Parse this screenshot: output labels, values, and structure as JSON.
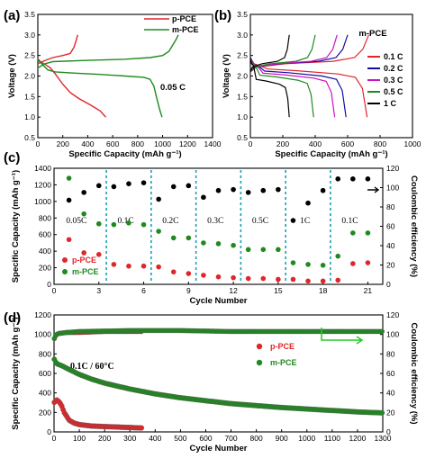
{
  "colors": {
    "red": "#e0262b",
    "green": "#1f8a1f",
    "black": "#000000",
    "blue": "#1010a0",
    "magenta": "#d010c0",
    "cyan": "#1aa0b0",
    "arrow": "#22cc22"
  },
  "chart_data": [
    {
      "panel": "(a)",
      "type": "line",
      "xlabel": "Specific Capacity (mAh g⁻¹)",
      "ylabel": "Voltage (V)",
      "xlim": [
        0,
        1400
      ],
      "ylim": [
        0.5,
        3.5
      ],
      "xticks": [
        0,
        200,
        400,
        600,
        800,
        1000,
        1200,
        1400
      ],
      "yticks": [
        0.5,
        1.0,
        1.5,
        2.0,
        2.5,
        3.0,
        3.5
      ],
      "legend": [
        "p-PCE",
        "m-PCE"
      ],
      "legend_placement": "top-right",
      "annotation": "0.05 C",
      "series": [
        {
          "name": "p-PCE",
          "color": "red",
          "segments": [
            [
              [
                0,
                2.42
              ],
              [
                20,
                2.35
              ],
              [
                60,
                2.28
              ],
              [
                100,
                2.2
              ],
              [
                140,
                2.05
              ],
              [
                200,
                1.8
              ],
              [
                260,
                1.6
              ],
              [
                330,
                1.45
              ],
              [
                420,
                1.3
              ],
              [
                500,
                1.15
              ],
              [
                545,
                1.0
              ]
            ],
            [
              [
                0,
                2.3
              ],
              [
                60,
                2.38
              ],
              [
                120,
                2.45
              ],
              [
                200,
                2.5
              ],
              [
                260,
                2.55
              ],
              [
                290,
                2.7
              ],
              [
                305,
                2.85
              ],
              [
                320,
                3.0
              ]
            ]
          ]
        },
        {
          "name": "m-PCE",
          "color": "green",
          "segments": [
            [
              [
                0,
                2.4
              ],
              [
                30,
                2.3
              ],
              [
                80,
                2.15
              ],
              [
                140,
                2.1
              ],
              [
                300,
                2.07
              ],
              [
                500,
                2.04
              ],
              [
                700,
                2.0
              ],
              [
                850,
                1.97
              ],
              [
                900,
                1.92
              ],
              [
                930,
                1.75
              ],
              [
                950,
                1.5
              ],
              [
                975,
                1.2
              ],
              [
                995,
                1.0
              ]
            ],
            [
              [
                0,
                2.2
              ],
              [
                60,
                2.3
              ],
              [
                120,
                2.35
              ],
              [
                400,
                2.38
              ],
              [
                700,
                2.41
              ],
              [
                900,
                2.45
              ],
              [
                1000,
                2.5
              ],
              [
                1050,
                2.6
              ],
              [
                1080,
                2.75
              ],
              [
                1110,
                2.9
              ],
              [
                1125,
                3.0
              ]
            ]
          ]
        }
      ]
    },
    {
      "panel": "(b)",
      "type": "line",
      "title": "m-PCE",
      "xlabel": "Specific Capacity (mAh g⁻¹)",
      "ylabel": "Voltage (V)",
      "xlim": [
        0,
        1000
      ],
      "ylim": [
        0.5,
        3.5
      ],
      "xticks": [
        0,
        200,
        400,
        600,
        800,
        1000
      ],
      "yticks": [
        0.5,
        1.0,
        1.5,
        2.0,
        2.5,
        3.0,
        3.5
      ],
      "legend": [
        "0.1 C",
        "0.2 C",
        "0.3 C",
        "0.5 C",
        "1 C"
      ],
      "legend_placement": "right",
      "series": [
        {
          "name": "0.1 C",
          "color": "red",
          "discharge_end": 720,
          "charge_end": 730,
          "plateau": 2.05
        },
        {
          "name": "0.2 C",
          "color": "blue",
          "discharge_end": 590,
          "charge_end": 600,
          "plateau": 2.0
        },
        {
          "name": "0.3 C",
          "color": "magenta",
          "discharge_end": 520,
          "charge_end": 535,
          "plateau": 1.95
        },
        {
          "name": "0.5 C",
          "color": "green",
          "discharge_end": 390,
          "charge_end": 400,
          "plateau": 1.9
        },
        {
          "name": "1 C",
          "color": "black",
          "discharge_end": 240,
          "charge_end": 240,
          "plateau": 1.8
        }
      ]
    },
    {
      "panel": "(c)",
      "type": "scatter",
      "xlabel": "Cycle Number",
      "ylabel": "Specific Capacity (mAh g⁻¹)",
      "ylabel_right": "Coulombic efficiency (%)",
      "xlim": [
        0,
        22
      ],
      "ylim": [
        0,
        1400
      ],
      "ylim_right": [
        0,
        120
      ],
      "xticks": [
        0,
        3,
        6,
        9,
        12,
        15,
        18,
        21
      ],
      "yticks": [
        0,
        200,
        400,
        600,
        800,
        1000,
        1200,
        1400
      ],
      "yticks_right": [
        0,
        20,
        40,
        60,
        80,
        100,
        120
      ],
      "rate_labels": [
        {
          "text": "0.05C",
          "x": 1.5
        },
        {
          "text": "0.1C",
          "x": 4.8
        },
        {
          "text": "0.2C",
          "x": 7.8
        },
        {
          "text": "0.3C",
          "x": 10.8
        },
        {
          "text": "0.5C",
          "x": 13.8
        },
        {
          "text": "1C",
          "x": 16.8
        },
        {
          "text": "0.1C",
          "x": 19.8
        }
      ],
      "dividers": [
        3.5,
        6.5,
        9.5,
        12.5,
        15.5,
        18.5
      ],
      "legend": [
        "p-PCE",
        "m-PCE"
      ],
      "legend_placement": "bottom-left",
      "series": [
        {
          "name": "p-PCE",
          "color": "red",
          "x": [
            1,
            2,
            3,
            4,
            5,
            6,
            7,
            8,
            9,
            10,
            11,
            12,
            13,
            14,
            15,
            16,
            17,
            18,
            19,
            20,
            21
          ],
          "y": [
            540,
            380,
            360,
            240,
            220,
            220,
            210,
            150,
            130,
            110,
            90,
            80,
            70,
            70,
            60,
            60,
            40,
            40,
            50,
            250,
            260
          ]
        },
        {
          "name": "m-PCE",
          "color": "green",
          "x": [
            1,
            2,
            3,
            4,
            5,
            6,
            7,
            8,
            9,
            10,
            11,
            12,
            13,
            14,
            15,
            16,
            17,
            18,
            19,
            20,
            21
          ],
          "y": [
            1280,
            850,
            730,
            720,
            740,
            720,
            640,
            560,
            560,
            500,
            490,
            470,
            420,
            420,
            420,
            260,
            240,
            230,
            340,
            620,
            620
          ]
        },
        {
          "name": "Coulombic efficiency",
          "color": "black",
          "axis": "right",
          "x": [
            1,
            2,
            3,
            4,
            5,
            6,
            7,
            8,
            9,
            10,
            11,
            12,
            13,
            14,
            15,
            16,
            17,
            18,
            19,
            20,
            21
          ],
          "y": [
            87,
            95,
            102,
            101,
            104,
            105,
            88,
            101,
            102,
            90,
            97,
            98,
            95,
            97,
            98,
            66,
            84,
            97,
            109,
            109,
            109
          ]
        }
      ]
    },
    {
      "panel": "(d)",
      "type": "scatter",
      "xlabel": "Cycle Number",
      "ylabel": "Specific Capacity (mAh g⁻¹)",
      "ylabel_right": "Coulombic efficiency (%)",
      "xlim": [
        0,
        1300
      ],
      "ylim": [
        0,
        1200
      ],
      "ylim_right": [
        0,
        120
      ],
      "xticks": [
        0,
        100,
        200,
        300,
        400,
        500,
        600,
        700,
        800,
        900,
        1000,
        1100,
        1200,
        1300
      ],
      "yticks": [
        0,
        200,
        400,
        600,
        800,
        1000,
        1200
      ],
      "yticks_right": [
        0,
        20,
        40,
        60,
        80,
        100,
        120
      ],
      "annotation": "0.1C / 60°C",
      "legend": [
        "p-PCE",
        "m-PCE"
      ],
      "legend_placement": "center-right",
      "series": [
        {
          "name": "p-PCE",
          "color": "red",
          "x": [
            0,
            10,
            20,
            30,
            40,
            60,
            80,
            100,
            150,
            200,
            250,
            300,
            350
          ],
          "y": [
            300,
            330,
            310,
            270,
            200,
            120,
            90,
            75,
            60,
            55,
            50,
            45,
            40
          ]
        },
        {
          "name": "m-PCE",
          "color": "green",
          "x": [
            0,
            10,
            30,
            60,
            100,
            150,
            200,
            300,
            400,
            500,
            600,
            700,
            800,
            900,
            1000,
            1100,
            1200,
            1300
          ],
          "y": [
            750,
            700,
            680,
            640,
            590,
            540,
            500,
            440,
            390,
            350,
            320,
            290,
            270,
            250,
            235,
            220,
            205,
            195
          ]
        },
        {
          "name": "p-PCE CE",
          "color": "red",
          "axis": "right",
          "x": [
            0,
            5,
            10,
            20,
            50,
            100,
            200,
            300,
            350
          ],
          "y": [
            95,
            98,
            100,
            101,
            102,
            102,
            103,
            103,
            103
          ]
        },
        {
          "name": "m-PCE CE",
          "color": "green",
          "axis": "right",
          "x": [
            0,
            5,
            10,
            20,
            50,
            100,
            300,
            500,
            700,
            900,
            1100,
            1300
          ],
          "y": [
            95,
            99,
            100,
            101,
            102,
            103,
            104,
            104,
            103,
            103,
            103,
            103
          ]
        }
      ]
    }
  ]
}
